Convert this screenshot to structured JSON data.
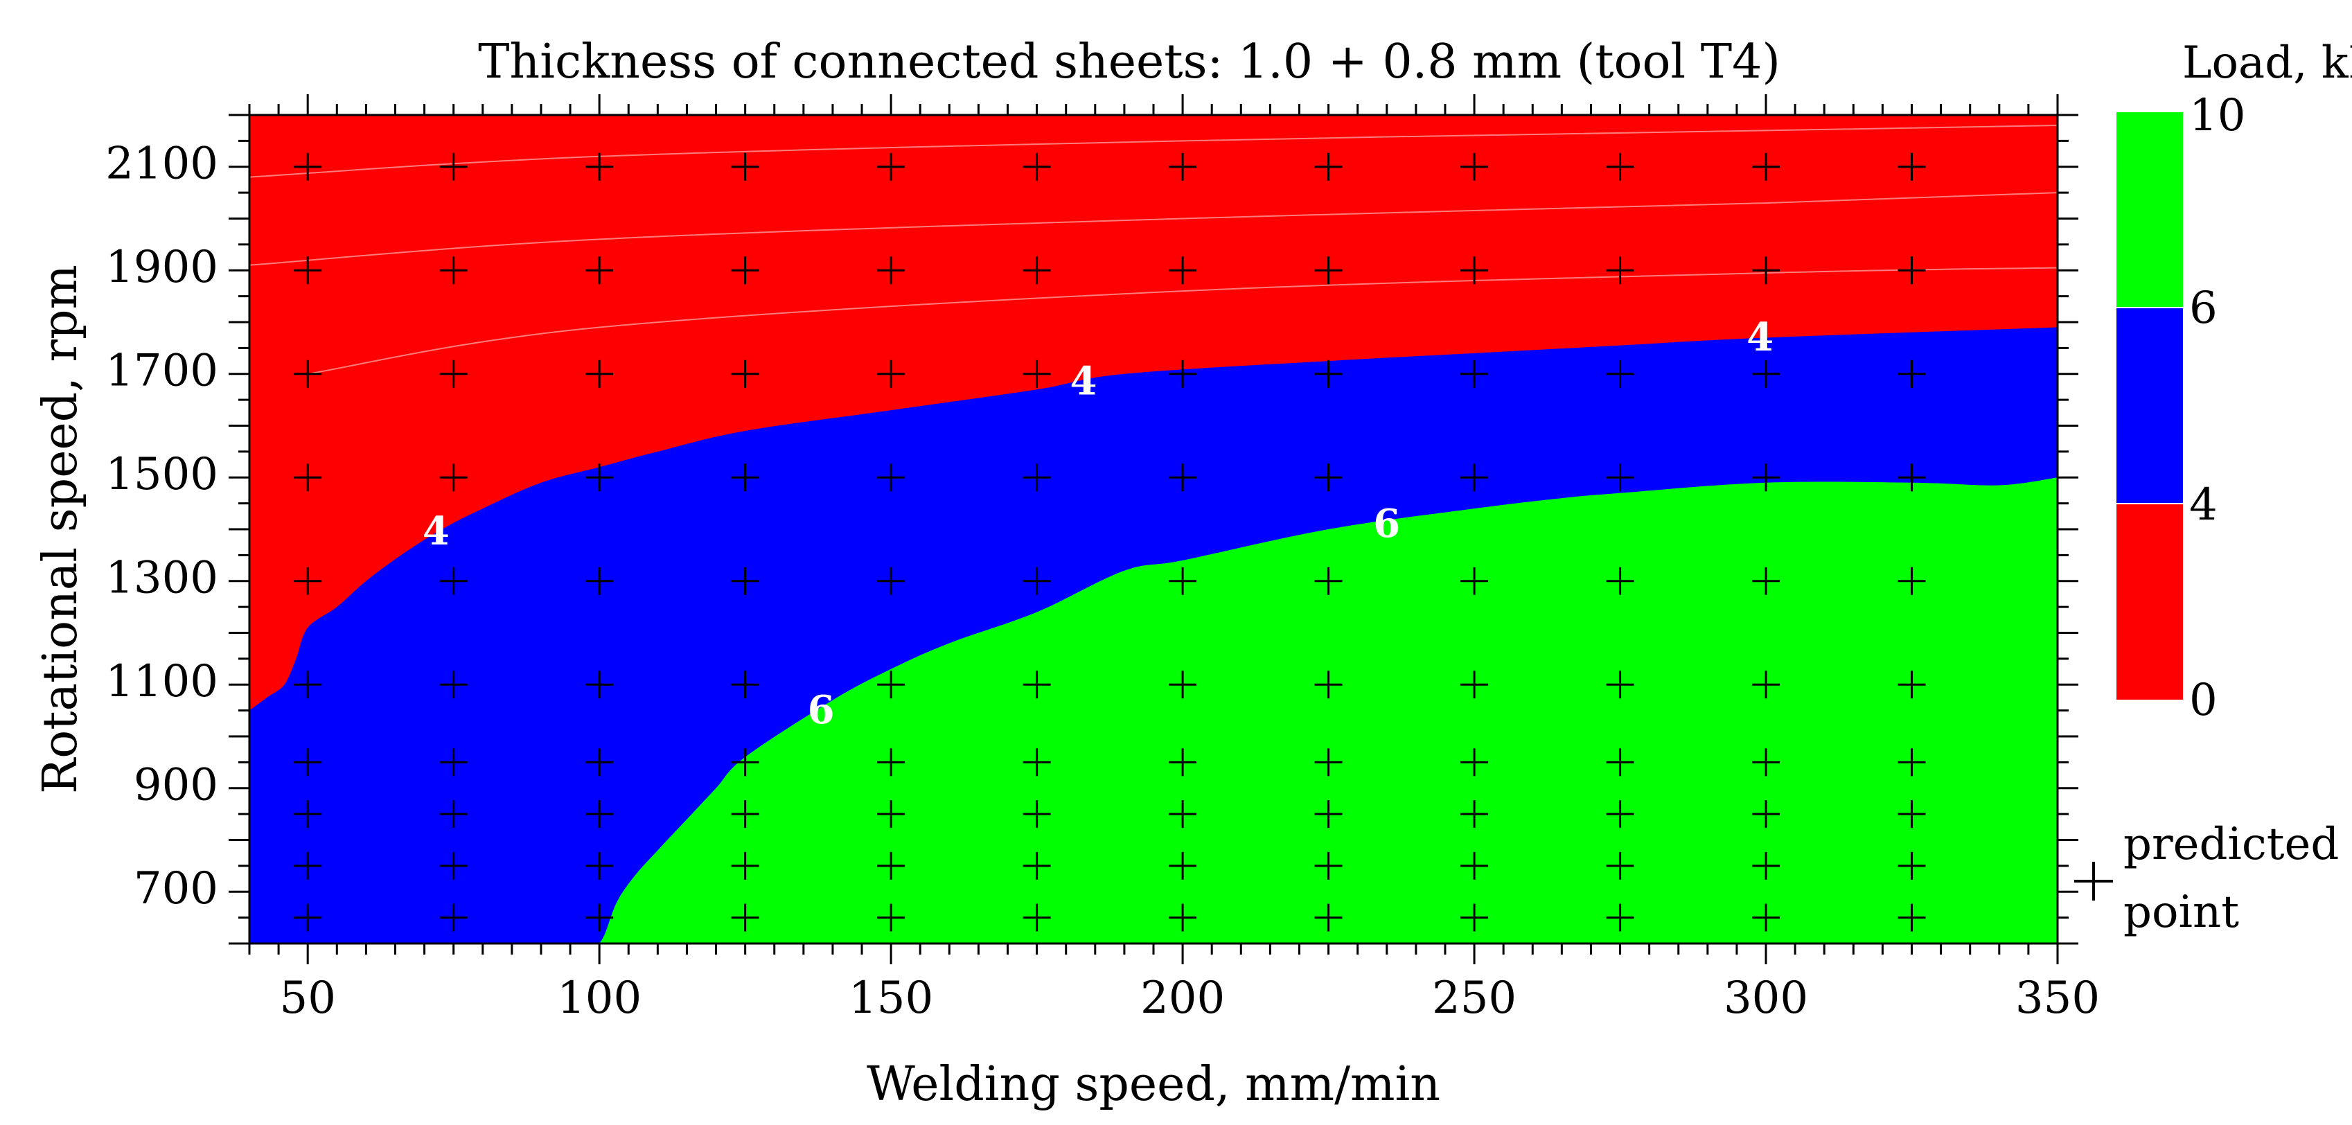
{
  "chart_data": {
    "type": "heatmap",
    "subtype": "filled-contour",
    "title": "Thickness of connected sheets: 1.0 + 0.8 mm (tool T4)",
    "xlabel": "Welding speed, mm/min",
    "ylabel": "Rotational speed, rpm",
    "xlim": [
      40,
      350
    ],
    "ylim": [
      600,
      2200
    ],
    "xticks": [
      50,
      100,
      150,
      200,
      250,
      300,
      350
    ],
    "yticks": [
      700,
      900,
      1100,
      1300,
      1500,
      1700,
      1900,
      2100
    ],
    "colorbar": {
      "title": "Load, kN",
      "levels": [
        {
          "from": 0,
          "to": 4,
          "color": "#ff0000"
        },
        {
          "from": 4,
          "to": 6,
          "color": "#0000ff"
        },
        {
          "from": 6,
          "to": 10,
          "color": "#00ff00"
        }
      ],
      "tick_labels": [
        "10",
        "6",
        "4",
        "0"
      ]
    },
    "contours": [
      {
        "level": 4,
        "points": [
          [
            40,
            1050
          ],
          [
            43,
            1075
          ],
          [
            46,
            1100
          ],
          [
            48,
            1150
          ],
          [
            50,
            1210
          ],
          [
            55,
            1250
          ],
          [
            60,
            1300
          ],
          [
            66,
            1350
          ],
          [
            73,
            1400
          ],
          [
            80,
            1440
          ],
          [
            90,
            1490
          ],
          [
            100,
            1520
          ],
          [
            110,
            1550
          ],
          [
            125,
            1590
          ],
          [
            150,
            1630
          ],
          [
            175,
            1670
          ],
          [
            190,
            1700
          ],
          [
            225,
            1725
          ],
          [
            250,
            1740
          ],
          [
            275,
            1755
          ],
          [
            300,
            1770
          ],
          [
            350,
            1790
          ]
        ]
      },
      {
        "level": 6,
        "points": [
          [
            100,
            600
          ],
          [
            101,
            620
          ],
          [
            103,
            680
          ],
          [
            106,
            730
          ],
          [
            110,
            780
          ],
          [
            115,
            840
          ],
          [
            120,
            900
          ],
          [
            125,
            960
          ],
          [
            140,
            1070
          ],
          [
            150,
            1130
          ],
          [
            160,
            1180
          ],
          [
            175,
            1240
          ],
          [
            190,
            1320
          ],
          [
            200,
            1340
          ],
          [
            225,
            1400
          ],
          [
            250,
            1440
          ],
          [
            265,
            1460
          ],
          [
            275,
            1470
          ],
          [
            300,
            1490
          ],
          [
            325,
            1490
          ],
          [
            340,
            1485
          ],
          [
            350,
            1500
          ]
        ]
      }
    ],
    "contour_labels": [
      {
        "text": "4",
        "x": 72,
        "y": 1390
      },
      {
        "text": "4",
        "x": 183,
        "y": 1680
      },
      {
        "text": "4",
        "x": 299,
        "y": 1765
      },
      {
        "text": "6",
        "x": 138,
        "y": 1045
      },
      {
        "text": "6",
        "x": 235,
        "y": 1405
      }
    ],
    "predicted_points": {
      "x": [
        50,
        75,
        100,
        125,
        150,
        175,
        200,
        225,
        250,
        275,
        300,
        325
      ],
      "y": [
        650,
        750,
        850,
        950,
        1100,
        1300,
        1500,
        1700,
        1900,
        2100
      ]
    },
    "legend": {
      "marker": "+",
      "label_line1": "predicted",
      "label_line2": "point"
    },
    "grid": false
  }
}
